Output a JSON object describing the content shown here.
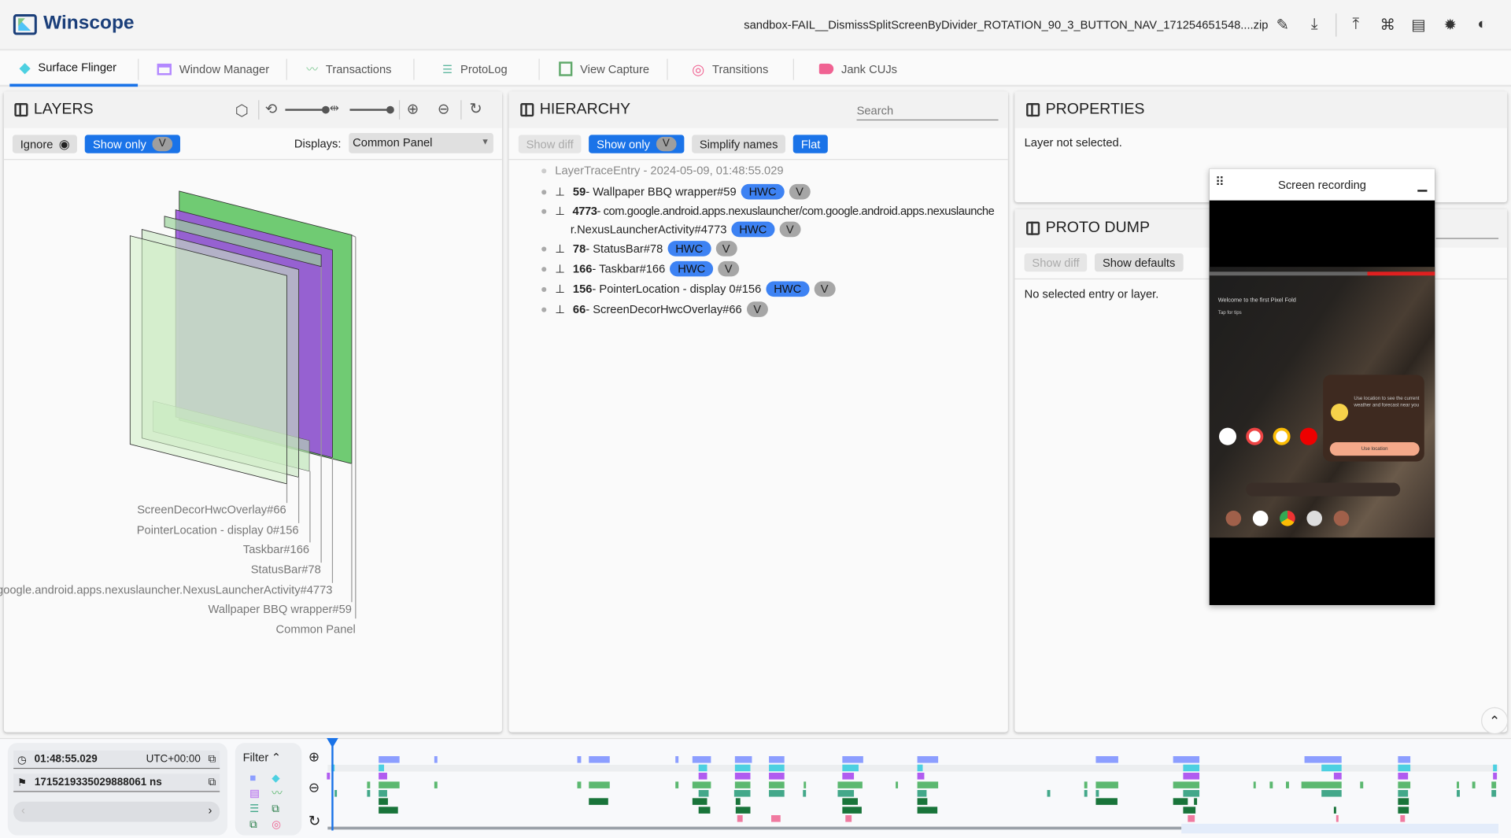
{
  "app": {
    "title": "Winscope",
    "file_name": "sandbox-FAIL__DismissSplitScreenByDivider_ROTATION_90_3_BUTTON_NAV_171254651548....zip",
    "header_icons": [
      "pencil-icon",
      "download-icon",
      "upload-icon",
      "command-icon",
      "book-icon",
      "bug-icon",
      "contrast-icon"
    ]
  },
  "tabs": [
    {
      "label": "Surface Flinger",
      "icon": "layers-icon",
      "color": "#4dd0e1",
      "active": true
    },
    {
      "label": "Window Manager",
      "icon": "window-icon",
      "color": "#b388ff"
    },
    {
      "label": "Transactions",
      "icon": "timeline-icon",
      "color": "#81c995"
    },
    {
      "label": "ProtoLog",
      "icon": "notes-icon",
      "color": "#5fb8a0"
    },
    {
      "label": "View Capture",
      "icon": "copy-icon",
      "color": "#4caf50"
    },
    {
      "label": "Transitions",
      "icon": "transitions-icon",
      "color": "#f06292"
    },
    {
      "label": "Jank CUJs",
      "icon": "label-icon",
      "color": "#f06292"
    }
  ],
  "layers": {
    "title": "LAYERS",
    "ignore_label": "Ignore",
    "show_only_label": "Show only",
    "v": "V",
    "displays_label": "Displays:",
    "display_selected": "Common Panel",
    "rect_labels": [
      "ScreenDecorHwcOverlay#66",
      "PointerLocation - display 0#156",
      "Taskbar#166",
      "StatusBar#78",
      "google.android.apps.nexuslauncher.NexusLauncherActivity#4773",
      "Wallpaper BBQ wrapper#59",
      "Common Panel"
    ]
  },
  "hierarchy": {
    "title": "HIERARCHY",
    "search_placeholder": "Search",
    "show_diff": "Show diff",
    "show_only": "Show only",
    "v": "V",
    "simplify_names": "Simplify names",
    "flat": "Flat",
    "root": "LayerTraceEntry - 2024-05-09, 01:48:55.029",
    "items": [
      {
        "id": "59",
        "name": " - Wallpaper BBQ wrapper#59",
        "hwc": "HWC",
        "v": "V"
      },
      {
        "id": "4773",
        "name": " - com.google.android.apps.nexuslauncher/com.google.android.apps.nexuslaunche",
        "name2": "r.NexusLauncherActivity#4773",
        "hwc": "HWC",
        "v": "V"
      },
      {
        "id": "78",
        "name": " - StatusBar#78",
        "hwc": "HWC",
        "v": "V"
      },
      {
        "id": "166",
        "name": " - Taskbar#166",
        "hwc": "HWC",
        "v": "V"
      },
      {
        "id": "156",
        "name": " - PointerLocation - display 0#156",
        "hwc": "HWC",
        "v": "V"
      },
      {
        "id": "66",
        "name": " - ScreenDecorHwcOverlay#66",
        "v": "V"
      }
    ]
  },
  "properties": {
    "title": "PROPERTIES",
    "empty": "Layer not selected."
  },
  "proto_dump": {
    "title": "PROTO DUMP",
    "show_diff": "Show diff",
    "show_defaults": "Show defaults",
    "empty": "No selected entry or layer."
  },
  "screen_recording": {
    "title": "Screen recording",
    "welcome": "Welcome to the first Pixel Fold",
    "tips": "Tap for tips",
    "weather": "Use location to see the current weather and forecast near you",
    "use_location": "Use location"
  },
  "timeline": {
    "time": "01:48:55.029",
    "timezone": "UTC+00:00",
    "ns": "1715219335029888061 ns",
    "filter_label": "Filter",
    "row_colors": [
      "#8c9eff",
      "#4dd0e1",
      "#b05cf0",
      "#5cb870",
      "#43a88a",
      "#19743a",
      "#19743a",
      "#f07aa0"
    ]
  }
}
